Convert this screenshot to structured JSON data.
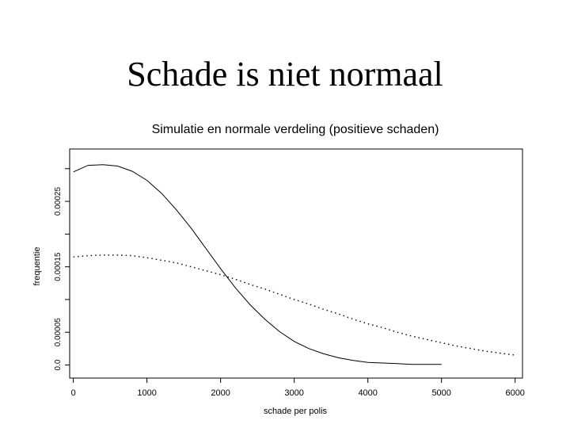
{
  "slide": {
    "title": "Schade is niet normaal"
  },
  "chart_data": {
    "type": "line",
    "title": "Simulatie en normale verdeling (positieve schaden)",
    "xlabel": "schade per polis",
    "ylabel": "frequentie",
    "xlim": [
      -50,
      6100
    ],
    "ylim": [
      -2e-05,
      0.00033
    ],
    "x_ticks": [
      0,
      1000,
      2000,
      3000,
      4000,
      5000,
      6000
    ],
    "x_tick_labels": [
      "0",
      "1000",
      "2000",
      "3000",
      "4000",
      "5000",
      "6000"
    ],
    "y_ticks": [
      0.0,
      5e-05,
      0.0001,
      0.00015,
      0.0002,
      0.00025,
      0.0003
    ],
    "y_tick_labels": [
      "0.0",
      "0.00005",
      "",
      "0.00015",
      "",
      "0.00025",
      ""
    ],
    "grid": false,
    "series": [
      {
        "style": "solid",
        "x": [
          0,
          200,
          400,
          600,
          800,
          1000,
          1200,
          1400,
          1600,
          1800,
          2000,
          2200,
          2400,
          2600,
          2800,
          3000,
          3200,
          3400,
          3600,
          3800,
          4000,
          4200,
          4400,
          4600,
          4800,
          5000
        ],
        "y": [
          0.000295,
          0.000305,
          0.000306,
          0.000304,
          0.000296,
          0.000282,
          0.000262,
          0.000237,
          0.000209,
          0.000178,
          0.000147,
          0.000118,
          9.2e-05,
          7e-05,
          5.1e-05,
          3.6e-05,
          2.5e-05,
          1.7e-05,
          1.1e-05,
          7e-06,
          4e-06,
          3e-06,
          2e-06,
          1e-06,
          1e-06,
          1e-06
        ]
      },
      {
        "style": "dotted",
        "x": [
          0,
          200,
          400,
          600,
          800,
          1000,
          1200,
          1400,
          1600,
          1800,
          2000,
          2200,
          2400,
          2600,
          2800,
          3000,
          3200,
          3400,
          3600,
          3800,
          4000,
          4200,
          4400,
          4600,
          4800,
          5000,
          5200,
          5400,
          5600,
          5800,
          6000
        ],
        "y": [
          0.000165,
          0.000167,
          0.000168,
          0.000168,
          0.000167,
          0.000164,
          0.00016,
          0.000156,
          0.00015,
          0.000144,
          0.000138,
          0.000131,
          0.000123,
          0.000116,
          0.000108,
          0.0001,
          9.3e-05,
          8.5e-05,
          7.8e-05,
          7e-05,
          6.3e-05,
          5.7e-05,
          5e-05,
          4.4e-05,
          3.9e-05,
          3.4e-05,
          2.9e-05,
          2.5e-05,
          2.1e-05,
          1.8e-05,
          1.5e-05
        ]
      }
    ]
  }
}
